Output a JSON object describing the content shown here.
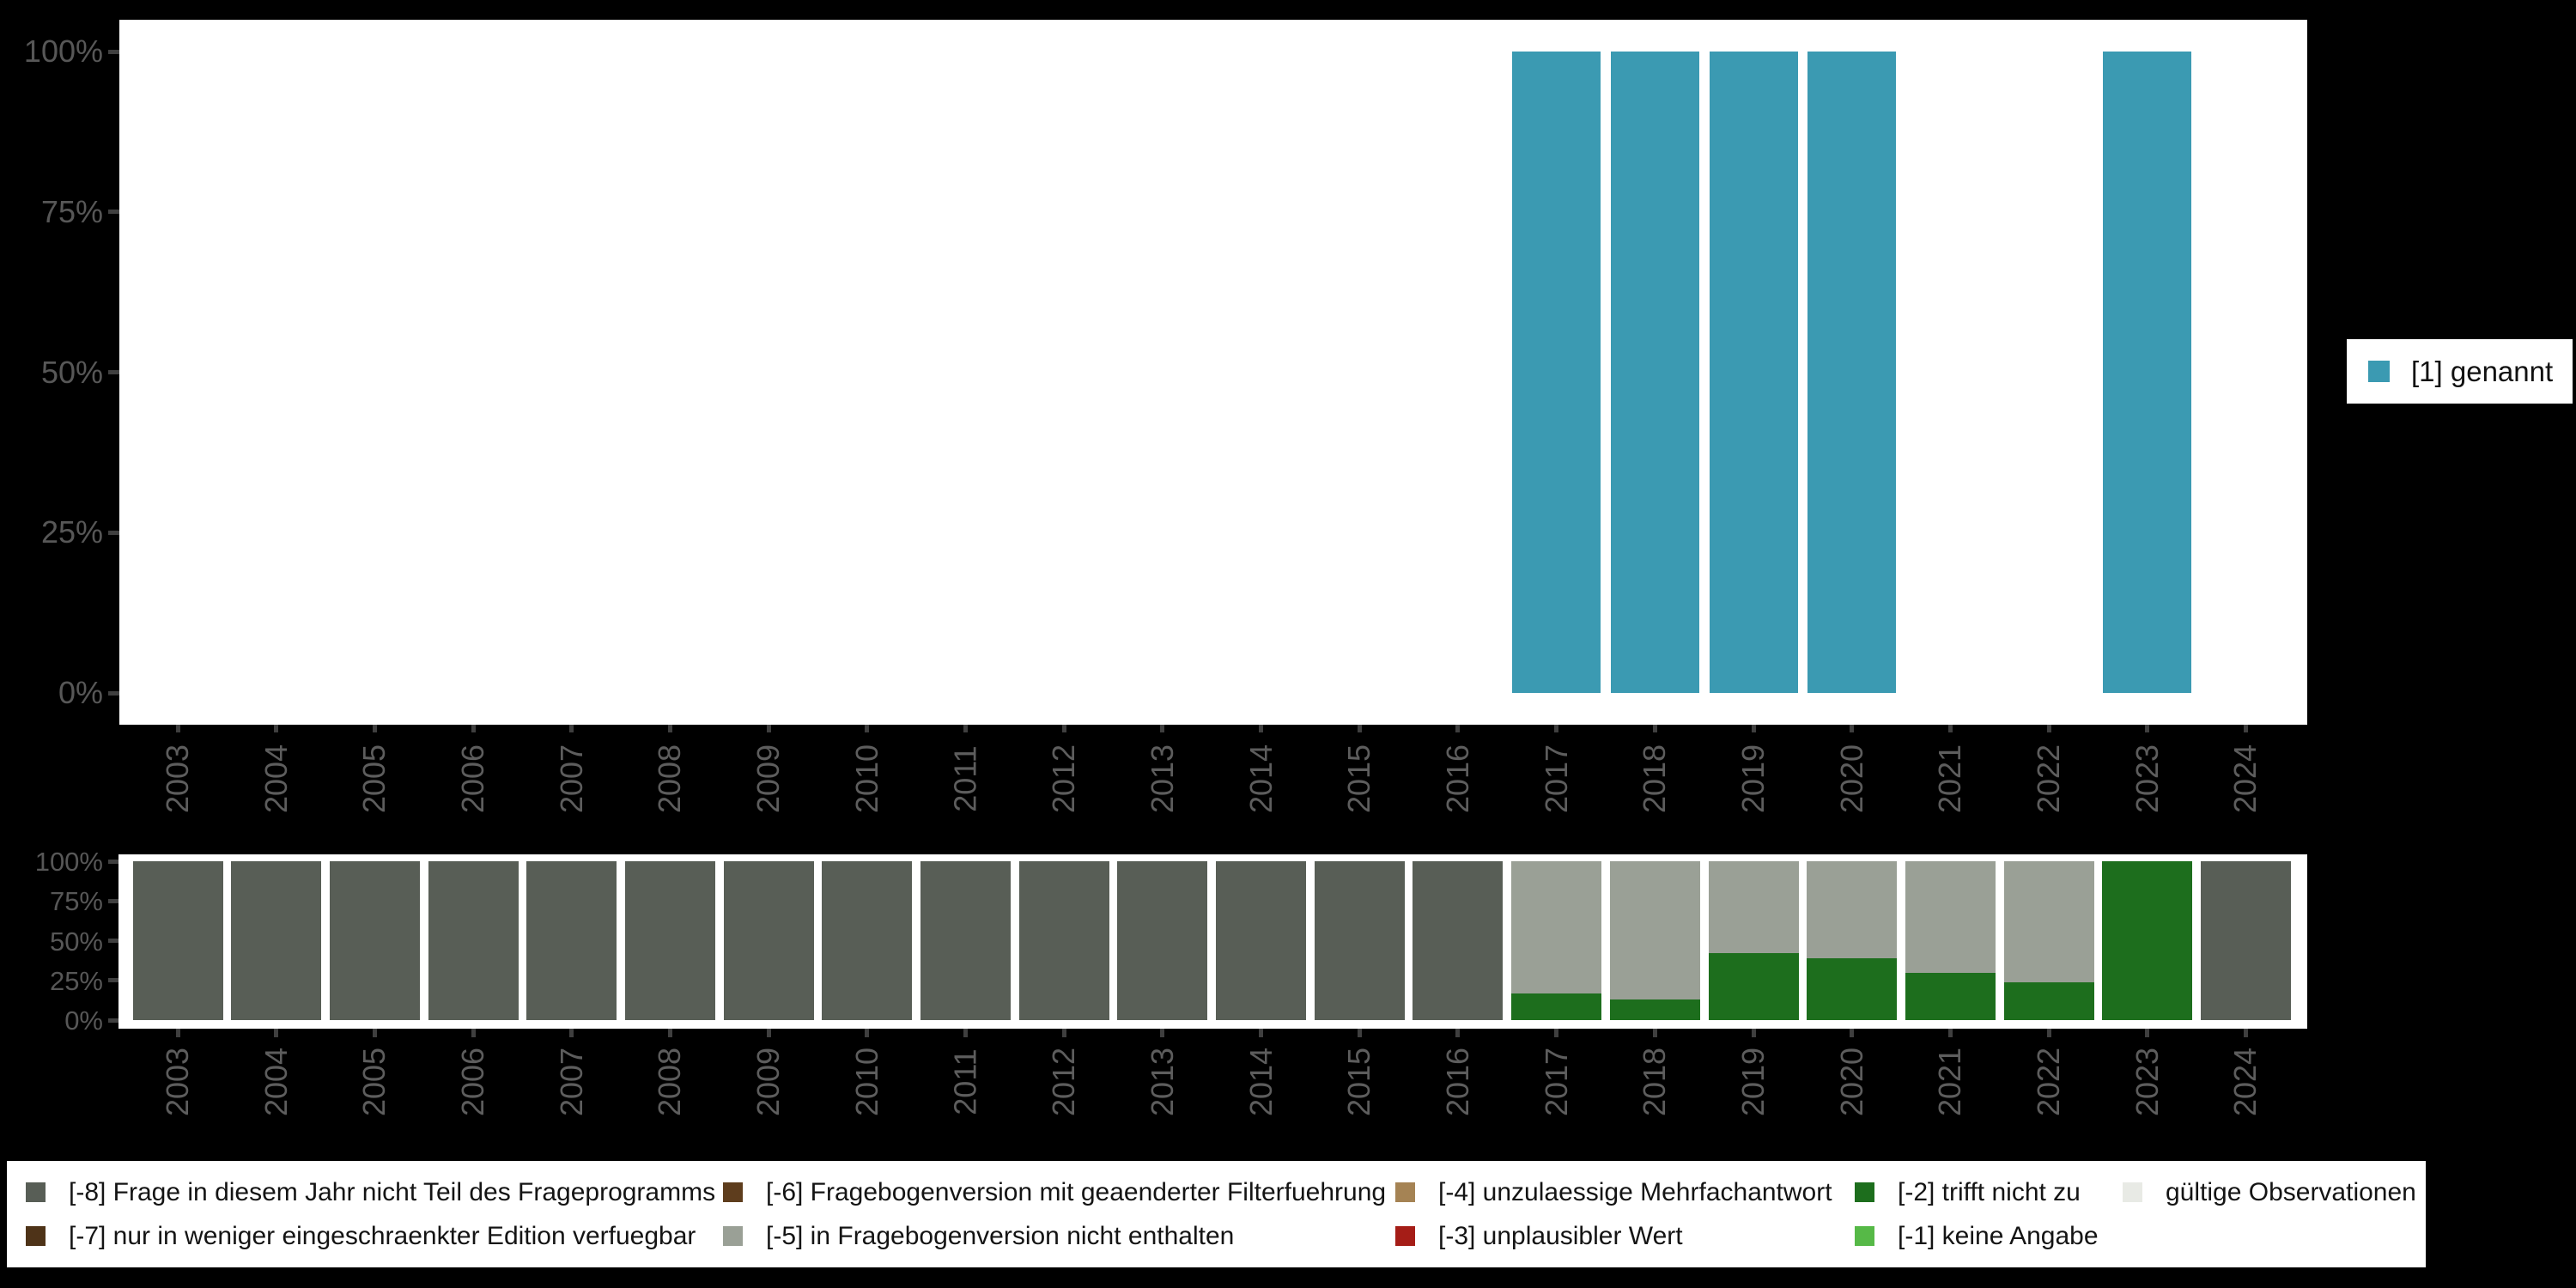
{
  "colors": {
    "background": "#000000",
    "plot_background": "#ffffff",
    "genannt_teal": "#3B9AB2",
    "m8_darkgray": "#585e56",
    "m7_darkbrown": "#4e3318",
    "m6_brown": "#5e3d1d",
    "m5_lightgray": "#9aa096",
    "m4_tan": "#a58354",
    "m3_red": "#a51d17",
    "m2_darkgreen": "#1d6e1d",
    "m1_lightgreen": "#56b947",
    "valid_offwhite": "#e8eae5",
    "axis_label_gray": "#575757",
    "tick_gray": "#3f3f3f"
  },
  "main_chart": {
    "legend_label": "[1] genannt",
    "y_tick_labels": [
      "0%",
      "25%",
      "50%",
      "75%",
      "100%"
    ]
  },
  "missings_chart": {
    "y_tick_labels": [
      "0%",
      "25%",
      "50%",
      "75%",
      "100%"
    ]
  },
  "chart_data": [
    {
      "type": "bar",
      "title": "",
      "xlabel": "",
      "ylabel": "",
      "ylim": [
        0,
        100
      ],
      "yticks_percent": [
        0,
        25,
        50,
        75,
        100
      ],
      "grid": false,
      "legend_position": "right",
      "categories": [
        "2003",
        "2004",
        "2005",
        "2006",
        "2007",
        "2008",
        "2009",
        "2010",
        "2011",
        "2012",
        "2013",
        "2014",
        "2015",
        "2016",
        "2017",
        "2018",
        "2019",
        "2020",
        "2021",
        "2022",
        "2023",
        "2024"
      ],
      "series": [
        {
          "name": "[1] genannt",
          "color": "#3B9AB2",
          "values": [
            null,
            null,
            null,
            null,
            null,
            null,
            null,
            null,
            null,
            null,
            null,
            null,
            null,
            null,
            100,
            100,
            100,
            100,
            null,
            null,
            100,
            null
          ]
        }
      ]
    },
    {
      "type": "bar",
      "stacked": true,
      "title": "",
      "xlabel": "",
      "ylabel": "",
      "ylim": [
        0,
        100
      ],
      "yticks_percent": [
        0,
        25,
        50,
        75,
        100
      ],
      "grid": false,
      "legend_position": "bottom",
      "categories": [
        "2003",
        "2004",
        "2005",
        "2006",
        "2007",
        "2008",
        "2009",
        "2010",
        "2011",
        "2012",
        "2013",
        "2014",
        "2015",
        "2016",
        "2017",
        "2018",
        "2019",
        "2020",
        "2021",
        "2022",
        "2023",
        "2024"
      ],
      "series": [
        {
          "key": "m8",
          "name": "[-8] Frage in diesem Jahr nicht Teil des Frageprogramms",
          "color": "#585e56",
          "values": [
            100,
            100,
            100,
            100,
            100,
            100,
            100,
            100,
            100,
            100,
            100,
            100,
            100,
            100,
            0,
            0,
            0,
            0,
            0,
            0,
            0,
            100
          ]
        },
        {
          "key": "m2",
          "name": "[-2] trifft nicht zu",
          "color": "#1d6e1d",
          "values": [
            0,
            0,
            0,
            0,
            0,
            0,
            0,
            0,
            0,
            0,
            0,
            0,
            0,
            0,
            17,
            13,
            42,
            39,
            30,
            24,
            100,
            0
          ]
        },
        {
          "key": "m5",
          "name": "[-5] in Fragebogenversion nicht enthalten",
          "color": "#9aa096",
          "values": [
            0,
            0,
            0,
            0,
            0,
            0,
            0,
            0,
            0,
            0,
            0,
            0,
            0,
            0,
            83,
            87,
            58,
            61,
            70,
            76,
            0,
            0
          ]
        }
      ]
    }
  ],
  "legend_bottom": {
    "rows": [
      [
        {
          "key": "m8",
          "label": "[-8] Frage in diesem Jahr nicht Teil des Frageprogramms",
          "color": "#585e56"
        },
        {
          "key": "m6",
          "label": "[-6] Fragebogenversion mit geaenderter Filterfuehrung",
          "color": "#5e3d1d"
        },
        {
          "key": "m4",
          "label": "[-4] unzulaessige Mehrfachantwort",
          "color": "#a58354"
        },
        {
          "key": "m2",
          "label": "[-2] trifft nicht zu",
          "color": "#1d6e1d"
        },
        {
          "key": "valid",
          "label": "gültige Observationen",
          "color": "#e8eae5"
        }
      ],
      [
        {
          "key": "m7",
          "label": "[-7] nur in weniger eingeschraenkter Edition verfuegbar",
          "color": "#4e3318"
        },
        {
          "key": "m5",
          "label": "[-5] in Fragebogenversion nicht enthalten",
          "color": "#9aa096"
        },
        {
          "key": "m3",
          "label": "[-3] unplausibler Wert",
          "color": "#a51d17"
        },
        {
          "key": "m1",
          "label": "[-1] keine Angabe",
          "color": "#56b947"
        }
      ]
    ]
  }
}
